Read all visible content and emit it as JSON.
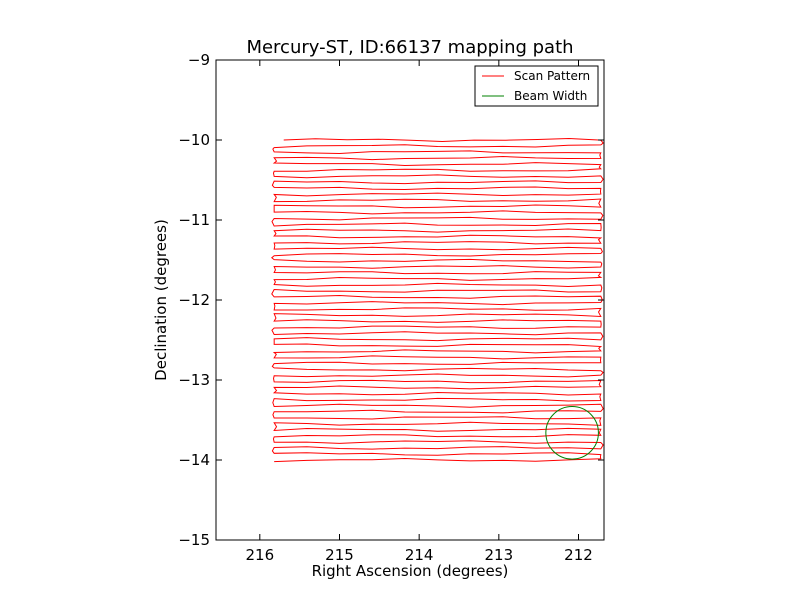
{
  "chart_data": {
    "type": "line",
    "title": "Mercury-ST, ID:66137 mapping path",
    "xlabel": "Right Ascension (degrees)",
    "ylabel": "Declination (degrees)",
    "xlim": [
      216.55,
      211.68
    ],
    "ylim": [
      -15,
      -9
    ],
    "x_inverted": true,
    "xticks": [
      216,
      215,
      214,
      213,
      212
    ],
    "yticks": [
      -9,
      -10,
      -11,
      -12,
      -13,
      -14,
      -15
    ],
    "xtick_labels": [
      "216",
      "215",
      "214",
      "213",
      "212"
    ],
    "ytick_labels": [
      "−9",
      "−10",
      "−11",
      "−12",
      "−13",
      "−14",
      "−15"
    ],
    "grid": false,
    "legend_position": "top-right",
    "series": [
      {
        "name": "Scan Pattern",
        "color": "#ff0000",
        "kind": "raster-scan",
        "ra_min": 215.82,
        "ra_max": 211.72,
        "ra_start": 215.7,
        "dec_start": -10.0,
        "dec_end": -14.0,
        "row_count": 54
      },
      {
        "name": "Beam Width",
        "color": "#008000",
        "kind": "circle",
        "center_ra": 212.08,
        "center_dec": -13.66,
        "radius_deg": 0.33
      }
    ]
  }
}
